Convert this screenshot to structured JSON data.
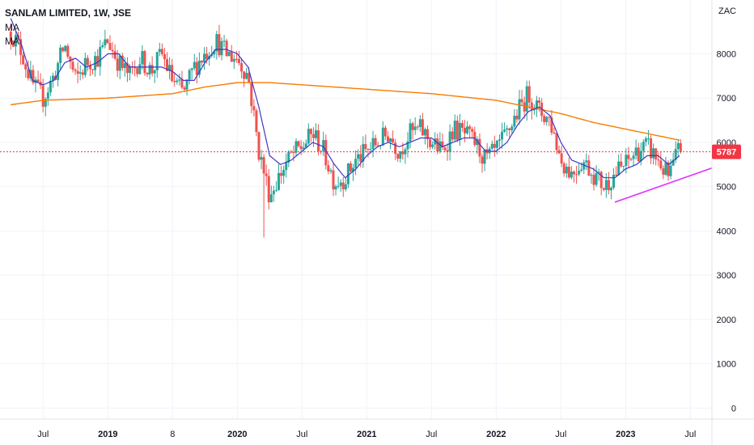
{
  "header": {
    "title": "SANLAM LIMITED, 1W, JSE",
    "indicator_1": "MA",
    "indicator_2": "MA"
  },
  "price_scale": {
    "currency": "ZAC"
  },
  "chart_data": {
    "type": "candlestick",
    "interval": "1W",
    "ylim": [
      -250,
      8850
    ],
    "y_ticks": [
      0,
      1000,
      2000,
      3000,
      4000,
      5000,
      6000,
      7000,
      8000
    ],
    "x_range": [
      "2018-04",
      "2023-09"
    ],
    "x_ticks": [
      {
        "label": "Jul",
        "date": "2018-07",
        "year": false
      },
      {
        "label": "2019",
        "date": "2019-01",
        "year": true
      },
      {
        "label": "8",
        "date": "2019-07",
        "year": false
      },
      {
        "label": "2020",
        "date": "2020-01",
        "year": true
      },
      {
        "label": "Jul",
        "date": "2020-07",
        "year": false
      },
      {
        "label": "2021",
        "date": "2021-01",
        "year": true
      },
      {
        "label": "Jul",
        "date": "2021-07",
        "year": false
      },
      {
        "label": "2022",
        "date": "2022-01",
        "year": true
      },
      {
        "label": "Jul",
        "date": "2022-07",
        "year": false
      },
      {
        "label": "2023",
        "date": "2023-01",
        "year": true
      },
      {
        "label": "Jul",
        "date": "2023-07",
        "year": false
      }
    ],
    "price_path": [
      [
        "2018-04",
        8500
      ],
      [
        "2018-05",
        8050
      ],
      [
        "2018-06",
        7300
      ],
      [
        "2018-07",
        7000
      ],
      [
        "2018-08",
        7500
      ],
      [
        "2018-09",
        8200
      ],
      [
        "2018-10",
        7400
      ],
      [
        "2018-11",
        7800
      ],
      [
        "2018-12",
        7900
      ],
      [
        "2019-01",
        8300
      ],
      [
        "2019-02",
        7800
      ],
      [
        "2019-03",
        7500
      ],
      [
        "2019-04",
        7900
      ],
      [
        "2019-05",
        7600
      ],
      [
        "2019-06",
        8000
      ],
      [
        "2019-07",
        7400
      ],
      [
        "2019-08",
        7100
      ],
      [
        "2019-09",
        7700
      ],
      [
        "2019-10",
        8000
      ],
      [
        "2019-11",
        8300
      ],
      [
        "2019-12",
        8000
      ],
      [
        "2020-01",
        7900
      ],
      [
        "2020-02",
        7500
      ],
      [
        "2020-03",
        5800
      ],
      [
        "2020-04",
        4800
      ],
      [
        "2020-05",
        5300
      ],
      [
        "2020-06",
        5700
      ],
      [
        "2020-07",
        5900
      ],
      [
        "2020-08",
        6200
      ],
      [
        "2020-09",
        5800
      ],
      [
        "2020-10",
        5100
      ],
      [
        "2020-11",
        5200
      ],
      [
        "2020-12",
        5600
      ],
      [
        "2021-01",
        5800
      ],
      [
        "2021-02",
        6000
      ],
      [
        "2021-03",
        6200
      ],
      [
        "2021-04",
        5800
      ],
      [
        "2021-05",
        6200
      ],
      [
        "2021-06",
        6300
      ],
      [
        "2021-07",
        6000
      ],
      [
        "2021-08",
        5800
      ],
      [
        "2021-09",
        6300
      ],
      [
        "2021-10",
        6200
      ],
      [
        "2021-11",
        6000
      ],
      [
        "2021-12",
        5600
      ],
      [
        "2022-01",
        5800
      ],
      [
        "2022-02",
        6200
      ],
      [
        "2022-03",
        6700
      ],
      [
        "2022-04",
        7100
      ],
      [
        "2022-05",
        6700
      ],
      [
        "2022-06",
        6500
      ],
      [
        "2022-07",
        5600
      ],
      [
        "2022-08",
        5300
      ],
      [
        "2022-09",
        5600
      ],
      [
        "2022-10",
        5300
      ],
      [
        "2022-11",
        5000
      ],
      [
        "2022-12",
        5300
      ],
      [
        "2023-01",
        5500
      ],
      [
        "2023-02",
        5800
      ],
      [
        "2023-03",
        5900
      ],
      [
        "2023-04",
        5600
      ],
      [
        "2023-05",
        5200
      ],
      [
        "2023-06",
        5900
      ]
    ],
    "short_ma": [
      [
        "2018-04",
        8800
      ],
      [
        "2018-05",
        8200
      ],
      [
        "2018-06",
        7400
      ],
      [
        "2018-07",
        7300
      ],
      [
        "2018-08",
        7400
      ],
      [
        "2018-09",
        7800
      ],
      [
        "2018-10",
        7900
      ],
      [
        "2018-11",
        7700
      ],
      [
        "2018-12",
        7800
      ],
      [
        "2019-01",
        8000
      ],
      [
        "2019-02",
        8000
      ],
      [
        "2019-03",
        7700
      ],
      [
        "2019-04",
        7700
      ],
      [
        "2019-05",
        7700
      ],
      [
        "2019-06",
        7700
      ],
      [
        "2019-07",
        7600
      ],
      [
        "2019-08",
        7400
      ],
      [
        "2019-09",
        7400
      ],
      [
        "2019-10",
        7800
      ],
      [
        "2019-11",
        8100
      ],
      [
        "2019-12",
        8100
      ],
      [
        "2020-01",
        8000
      ],
      [
        "2020-02",
        7700
      ],
      [
        "2020-03",
        6800
      ],
      [
        "2020-04",
        5700
      ],
      [
        "2020-05",
        5500
      ],
      [
        "2020-06",
        5600
      ],
      [
        "2020-07",
        5800
      ],
      [
        "2020-08",
        6000
      ],
      [
        "2020-09",
        5900
      ],
      [
        "2020-10",
        5500
      ],
      [
        "2020-11",
        5200
      ],
      [
        "2020-12",
        5400
      ],
      [
        "2021-01",
        5700
      ],
      [
        "2021-02",
        5900
      ],
      [
        "2021-03",
        6000
      ],
      [
        "2021-04",
        5900
      ],
      [
        "2021-05",
        6000
      ],
      [
        "2021-06",
        6100
      ],
      [
        "2021-07",
        6100
      ],
      [
        "2021-08",
        5900
      ],
      [
        "2021-09",
        6000
      ],
      [
        "2021-10",
        6100
      ],
      [
        "2021-11",
        6100
      ],
      [
        "2021-12",
        5800
      ],
      [
        "2022-01",
        5800
      ],
      [
        "2022-02",
        6000
      ],
      [
        "2022-03",
        6400
      ],
      [
        "2022-04",
        6700
      ],
      [
        "2022-05",
        6800
      ],
      [
        "2022-06",
        6600
      ],
      [
        "2022-07",
        6000
      ],
      [
        "2022-08",
        5600
      ],
      [
        "2022-09",
        5500
      ],
      [
        "2022-10",
        5400
      ],
      [
        "2022-11",
        5200
      ],
      [
        "2022-12",
        5200
      ],
      [
        "2023-01",
        5400
      ],
      [
        "2023-02",
        5500
      ],
      [
        "2023-03",
        5700
      ],
      [
        "2023-04",
        5700
      ],
      [
        "2023-05",
        5500
      ],
      [
        "2023-06",
        5700
      ]
    ],
    "long_ma": [
      [
        "2018-04",
        6850
      ],
      [
        "2018-07",
        6950
      ],
      [
        "2019-01",
        7000
      ],
      [
        "2019-07",
        7100
      ],
      [
        "2019-10",
        7250
      ],
      [
        "2020-01",
        7350
      ],
      [
        "2020-04",
        7350
      ],
      [
        "2020-07",
        7300
      ],
      [
        "2021-01",
        7200
      ],
      [
        "2021-07",
        7100
      ],
      [
        "2022-01",
        6950
      ],
      [
        "2022-04",
        6800
      ],
      [
        "2022-07",
        6650
      ],
      [
        "2022-10",
        6450
      ],
      [
        "2023-01",
        6300
      ],
      [
        "2023-04",
        6150
      ],
      [
        "2023-06",
        6050
      ]
    ],
    "trendline": [
      [
        "2022-12",
        4650
      ],
      [
        "2023-09",
        5420
      ]
    ],
    "last_price": 5787,
    "last_price_date": "2023-06"
  },
  "colors": {
    "up": "#26a69a",
    "down": "#ef5350",
    "short_ma": "#3f37c9",
    "long_ma": "#f57c00",
    "trendline": "#e040fb",
    "grid": "#f0f3fa",
    "text": "#131722",
    "price_label": "#f23645"
  }
}
